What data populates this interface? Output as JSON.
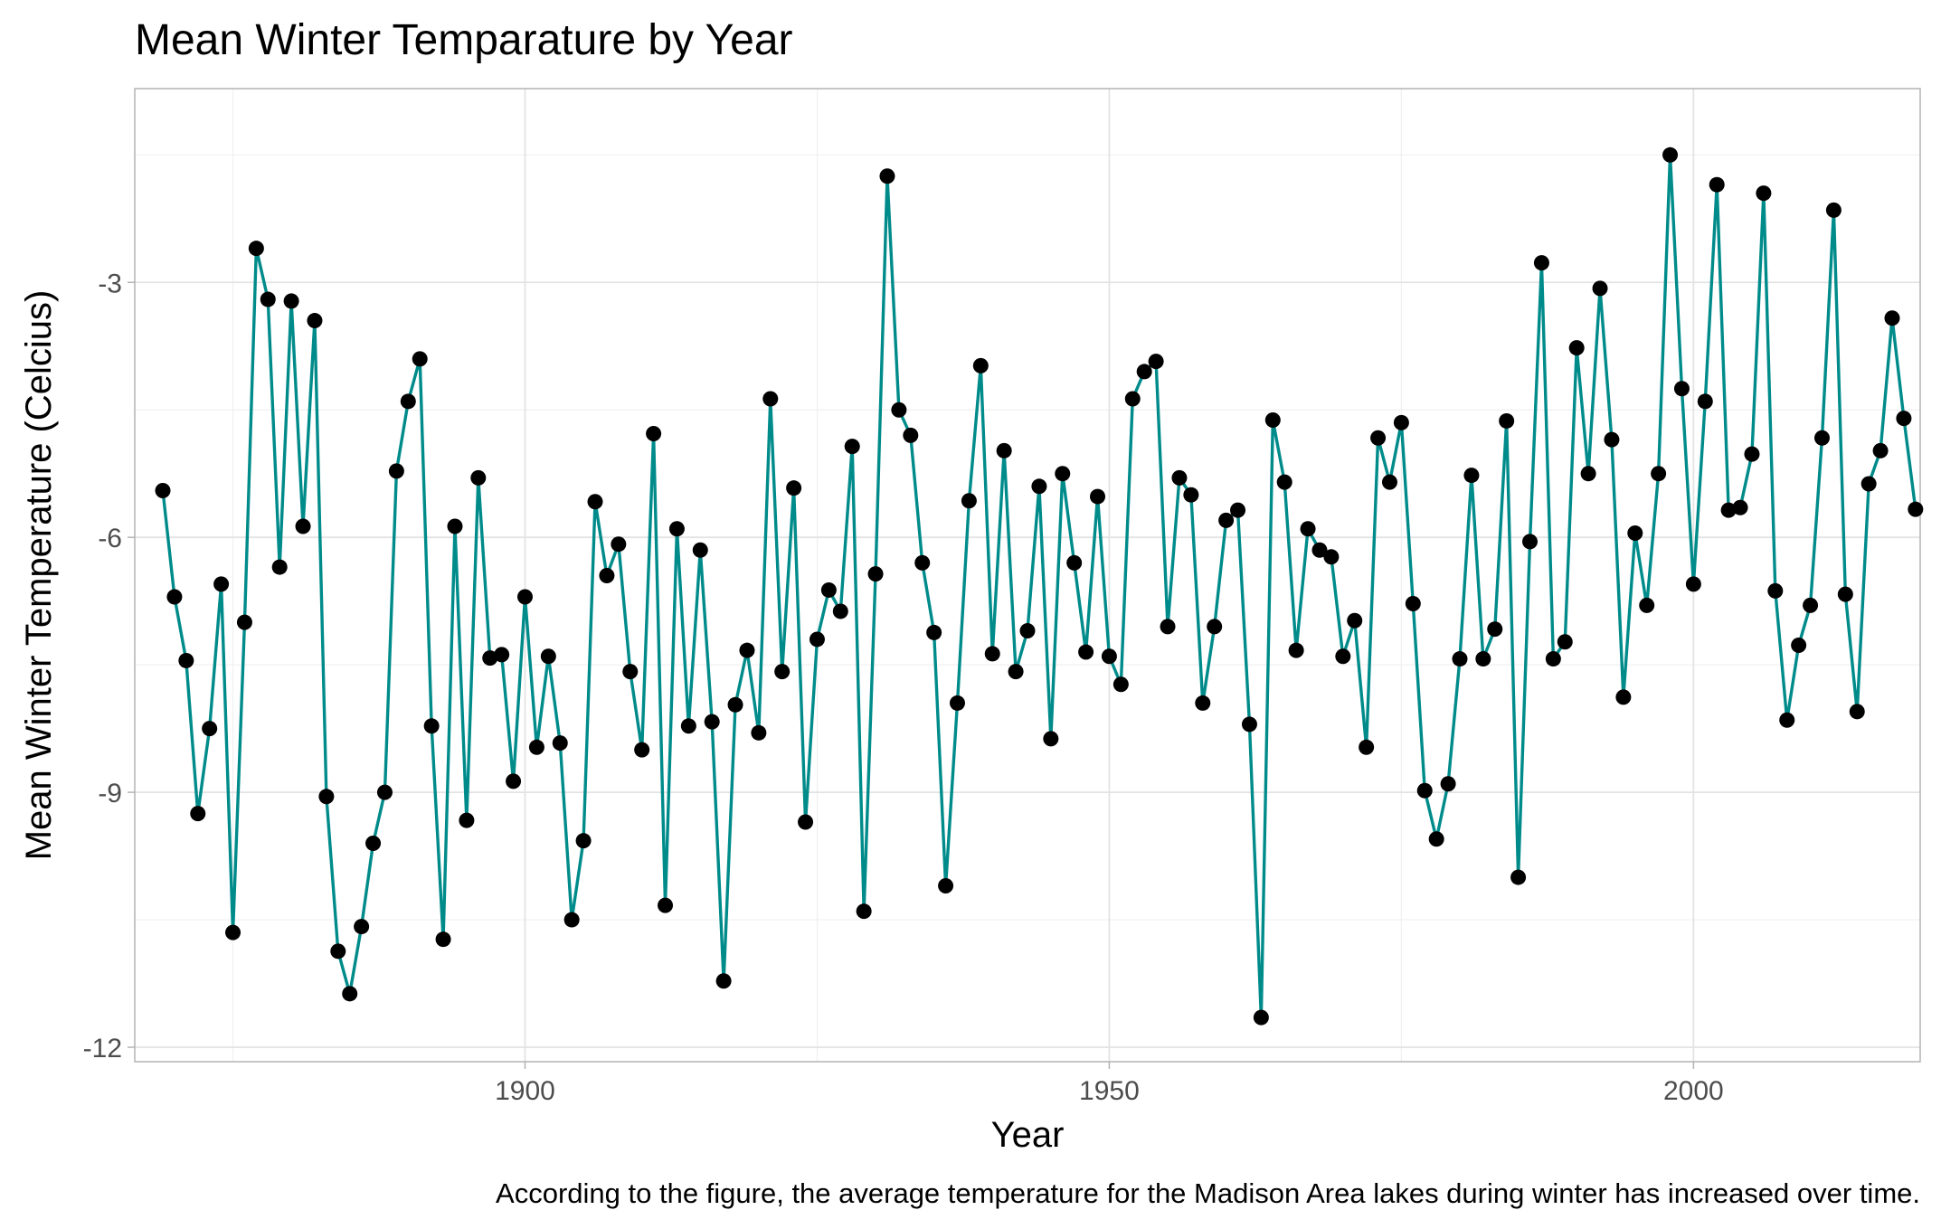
{
  "chart_data": {
    "type": "line",
    "title": "Mean Winter Temparature by Year",
    "xlabel": "Year",
    "ylabel": "Mean Winter Temperature (Celcius)",
    "caption": "According to the figure, the average temperature for the Madison Area lakes during winter has increased over time.",
    "xlim": [
      1866.6,
      2019.4
    ],
    "ylim": [
      -12.17,
      -0.72
    ],
    "x_ticks": [
      1900,
      1950,
      2000
    ],
    "x_tick_labels": [
      "1900",
      "1950",
      "2000"
    ],
    "y_ticks": [
      -12,
      -9,
      -6,
      -3
    ],
    "y_tick_labels": [
      "-12",
      "-9",
      "-6",
      "-3"
    ],
    "grid": true,
    "line_color": "#008B8B",
    "point_color": "#000000",
    "series": [
      {
        "name": "Mean Winter Temperature",
        "x": [
          1869,
          1870,
          1871,
          1872,
          1873,
          1874,
          1875,
          1876,
          1877,
          1878,
          1879,
          1880,
          1881,
          1882,
          1883,
          1884,
          1885,
          1886,
          1887,
          1888,
          1889,
          1890,
          1891,
          1892,
          1893,
          1894,
          1895,
          1896,
          1897,
          1898,
          1899,
          1900,
          1901,
          1902,
          1903,
          1904,
          1905,
          1906,
          1907,
          1908,
          1909,
          1910,
          1911,
          1912,
          1913,
          1914,
          1915,
          1916,
          1917,
          1918,
          1919,
          1920,
          1921,
          1922,
          1923,
          1924,
          1925,
          1926,
          1927,
          1928,
          1929,
          1930,
          1931,
          1932,
          1933,
          1934,
          1935,
          1936,
          1937,
          1938,
          1939,
          1940,
          1941,
          1942,
          1943,
          1944,
          1945,
          1946,
          1947,
          1948,
          1949,
          1950,
          1951,
          1952,
          1953,
          1954,
          1955,
          1956,
          1957,
          1958,
          1959,
          1960,
          1961,
          1962,
          1963,
          1964,
          1965,
          1966,
          1967,
          1968,
          1969,
          1970,
          1971,
          1972,
          1973,
          1974,
          1975,
          1976,
          1977,
          1978,
          1979,
          1980,
          1981,
          1982,
          1983,
          1984,
          1985,
          1986,
          1987,
          1988,
          1989,
          1990,
          1991,
          1992,
          1993,
          1994,
          1995,
          1996,
          1997,
          1998,
          1999,
          2000,
          2001,
          2002,
          2003,
          2004,
          2005,
          2006,
          2007,
          2008,
          2009,
          2010,
          2011,
          2012,
          2013,
          2014,
          2015,
          2016,
          2017,
          2018,
          2019
        ],
        "y": [
          -5.45,
          -6.7,
          -7.45,
          -9.25,
          -8.25,
          -6.55,
          -10.65,
          -7.0,
          -2.6,
          -3.2,
          -6.35,
          -3.22,
          -5.87,
          -3.45,
          -9.05,
          -10.87,
          -11.37,
          -10.58,
          -9.6,
          -9.0,
          -5.22,
          -4.4,
          -3.9,
          -8.22,
          -10.73,
          -5.87,
          -9.33,
          -5.3,
          -7.42,
          -7.38,
          -8.87,
          -6.7,
          -8.47,
          -7.4,
          -8.42,
          -10.5,
          -9.57,
          -5.58,
          -6.45,
          -6.08,
          -7.58,
          -8.5,
          -4.78,
          -10.33,
          -5.9,
          -8.22,
          -6.15,
          -8.17,
          -11.22,
          -7.97,
          -7.33,
          -8.3,
          -4.37,
          -7.58,
          -5.42,
          -9.35,
          -7.2,
          -6.62,
          -6.87,
          -4.93,
          -10.4,
          -6.43,
          -1.75,
          -4.5,
          -4.8,
          -6.3,
          -7.12,
          -10.1,
          -7.95,
          -5.57,
          -3.98,
          -7.37,
          -4.98,
          -7.58,
          -7.1,
          -5.4,
          -8.37,
          -5.25,
          -6.3,
          -7.35,
          -5.52,
          -7.4,
          -7.73,
          -4.37,
          -4.05,
          -3.93,
          -7.05,
          -5.3,
          -5.5,
          -7.95,
          -7.05,
          -5.8,
          -5.68,
          -8.2,
          -11.65,
          -4.62,
          -5.35,
          -7.33,
          -5.9,
          -6.15,
          -6.23,
          -7.4,
          -6.98,
          -8.47,
          -4.83,
          -5.35,
          -4.65,
          -6.78,
          -8.98,
          -9.55,
          -8.9,
          -7.43,
          -5.27,
          -7.43,
          -7.08,
          -4.63,
          -10.0,
          -6.05,
          -2.77,
          -7.43,
          -7.23,
          -3.77,
          -5.25,
          -3.07,
          -4.85,
          -7.88,
          -5.95,
          -6.8,
          -5.25,
          -1.5,
          -4.25,
          -6.55,
          -4.4,
          -1.85,
          -5.68,
          -5.65,
          -5.02,
          -1.95,
          -6.63,
          -8.15,
          -7.27,
          -6.8,
          -4.83,
          -2.15,
          -6.67,
          -8.05,
          -5.37,
          -4.98,
          -3.42,
          -4.6,
          -5.67
        ]
      }
    ]
  }
}
